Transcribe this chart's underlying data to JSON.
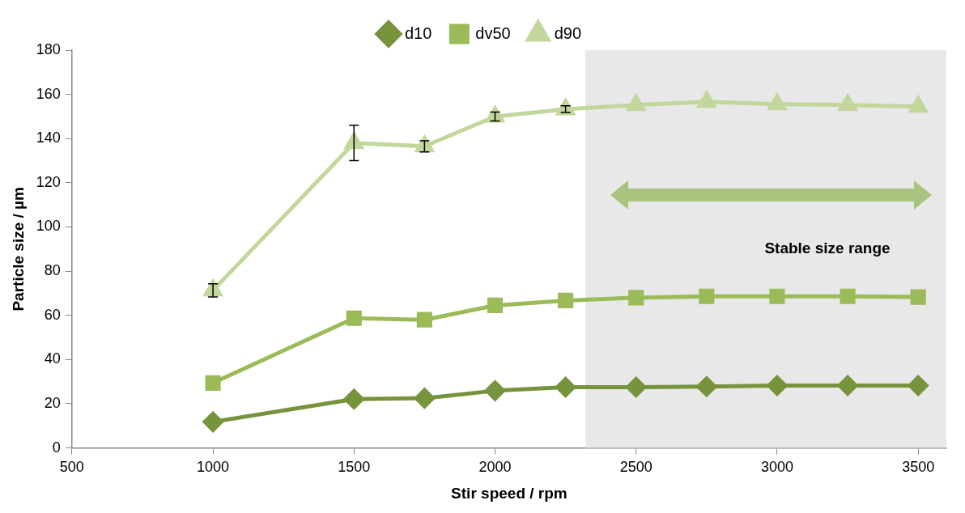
{
  "chart_data": {
    "type": "line",
    "xlabel": "Stir speed / rpm",
    "ylabel": "Particle size / µm",
    "x": [
      1000,
      1500,
      1750,
      2000,
      2250,
      2500,
      2750,
      3000,
      3250,
      3500
    ],
    "xlim": [
      500,
      3600
    ],
    "xticks": [
      500,
      1000,
      1500,
      2000,
      2500,
      3000,
      3500
    ],
    "ylim": [
      0,
      180
    ],
    "yticks": [
      0,
      20,
      40,
      60,
      80,
      100,
      120,
      140,
      160,
      180
    ],
    "grid": false,
    "legend": "top",
    "series": [
      {
        "name": "d10",
        "color": "#77933c",
        "marker": "diamond",
        "values": [
          11.8,
          22.1,
          22.5,
          25.9,
          27.5,
          27.5,
          27.8,
          28.2,
          28.2,
          28.2
        ]
      },
      {
        "name": "dv50",
        "color": "#9bbb59",
        "marker": "square",
        "values": [
          29.4,
          58.7,
          58,
          64.5,
          66.7,
          68,
          68.6,
          68.6,
          68.6,
          68.3
        ]
      },
      {
        "name": "d90",
        "color": "#c3d69b",
        "marker": "triangle",
        "values": [
          71.3,
          138,
          136.5,
          150,
          153.3,
          155.2,
          156.7,
          155.6,
          155.2,
          154.5
        ],
        "errors": [
          3,
          8,
          2.5,
          2,
          1.5,
          null,
          null,
          null,
          null,
          null
        ]
      }
    ],
    "bands": [
      {
        "axis": "x",
        "from": 2320,
        "to": 3600,
        "label": "Stable size range",
        "color": "#e8e8e8"
      }
    ]
  }
}
